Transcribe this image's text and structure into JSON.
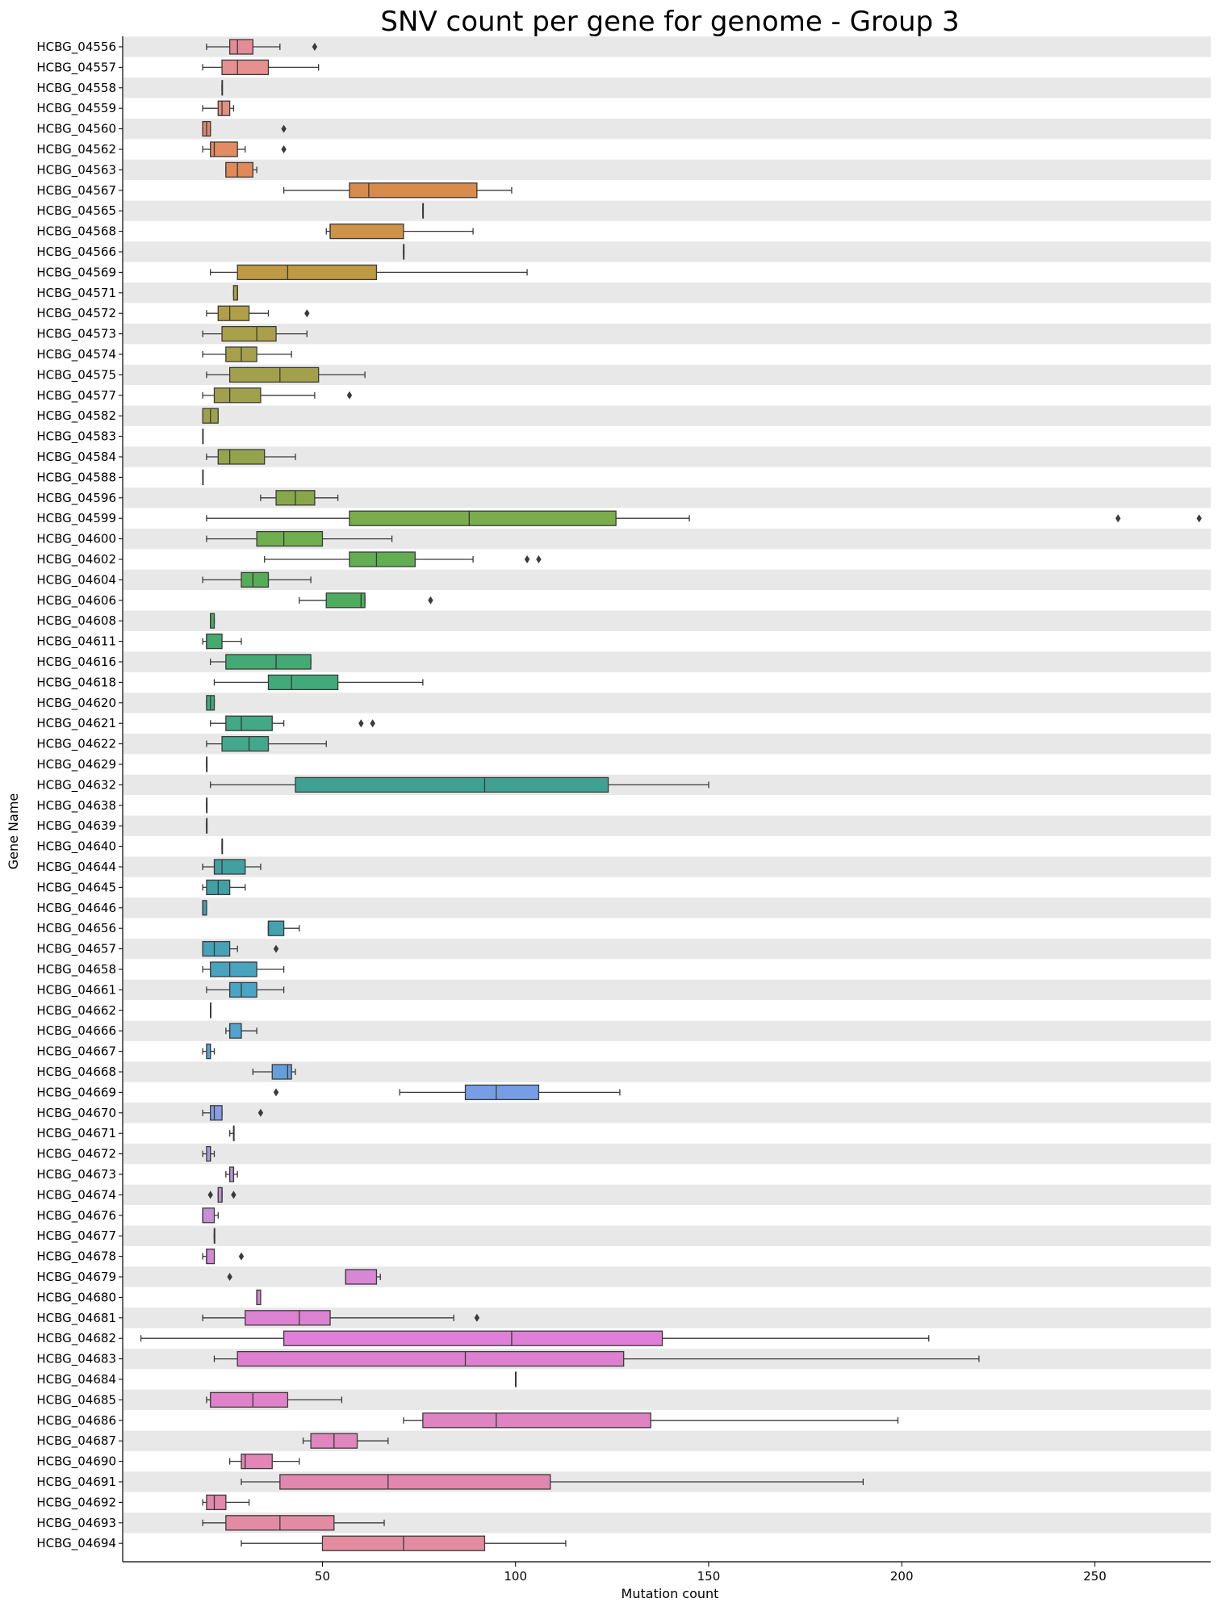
{
  "chart_data": {
    "type": "box",
    "orientation": "horizontal",
    "title": "SNV count per gene for genome - Group 3",
    "xlabel": "Mutation count",
    "ylabel": "Gene Name",
    "xlim": [
      1,
      280
    ],
    "xticks": [
      50,
      100,
      150,
      200,
      250
    ],
    "row_band_color": "#e8e8e8",
    "genes": [
      {
        "name": "HCBG_04556",
        "color": "#e48b98",
        "whisker_low": 20,
        "q1": 26,
        "median": 28,
        "q3": 32,
        "whisker_high": 39,
        "outliers": [
          48
        ]
      },
      {
        "name": "HCBG_04557",
        "color": "#e6908f",
        "whisker_low": 19,
        "q1": 24,
        "median": 28,
        "q3": 36,
        "whisker_high": 49,
        "outliers": []
      },
      {
        "name": "HCBG_04558",
        "color": "#e6908f",
        "whisker_low": 24,
        "q1": 24,
        "median": 24,
        "q3": 24,
        "whisker_high": 24,
        "outliers": []
      },
      {
        "name": "HCBG_04559",
        "color": "#e48f80",
        "whisker_low": 19,
        "q1": 23,
        "median": 24,
        "q3": 26,
        "whisker_high": 27,
        "outliers": []
      },
      {
        "name": "HCBG_04560",
        "color": "#e1876e",
        "whisker_low": 19,
        "q1": 19,
        "median": 20,
        "q3": 21,
        "whisker_high": 21,
        "outliers": [
          40
        ]
      },
      {
        "name": "HCBG_04562",
        "color": "#e38b63",
        "whisker_low": 19,
        "q1": 21,
        "median": 22,
        "q3": 28,
        "whisker_high": 30,
        "outliers": [
          40
        ]
      },
      {
        "name": "HCBG_04563",
        "color": "#df8a58",
        "whisker_low": 25,
        "q1": 25,
        "median": 28,
        "q3": 32,
        "whisker_high": 33,
        "outliers": []
      },
      {
        "name": "HCBG_04567",
        "color": "#d98b4c",
        "whisker_low": 40,
        "q1": 57,
        "median": 62,
        "q3": 90,
        "whisker_high": 99,
        "outliers": []
      },
      {
        "name": "HCBG_04565",
        "color": "#d48d4c",
        "whisker_low": 76,
        "q1": 76,
        "median": 76,
        "q3": 76,
        "whisker_high": 76,
        "outliers": []
      },
      {
        "name": "HCBG_04568",
        "color": "#cf924a",
        "whisker_low": 51,
        "q1": 52,
        "median": 52,
        "q3": 71,
        "whisker_high": 89,
        "outliers": []
      },
      {
        "name": "HCBG_04566",
        "color": "#c79645",
        "whisker_low": 71,
        "q1": 71,
        "median": 71,
        "q3": 71,
        "whisker_high": 71,
        "outliers": []
      },
      {
        "name": "HCBG_04569",
        "color": "#be9a42",
        "whisker_low": 21,
        "q1": 28,
        "median": 41,
        "q3": 64,
        "whisker_high": 103,
        "outliers": []
      },
      {
        "name": "HCBG_04571",
        "color": "#b59e43",
        "whisker_low": 27,
        "q1": 27,
        "median": 28,
        "q3": 28,
        "whisker_high": 28,
        "outliers": []
      },
      {
        "name": "HCBG_04572",
        "color": "#b09f47",
        "whisker_low": 20,
        "q1": 23,
        "median": 26,
        "q3": 31,
        "whisker_high": 36,
        "outliers": [
          46
        ]
      },
      {
        "name": "HCBG_04573",
        "color": "#aba04a",
        "whisker_low": 19,
        "q1": 24,
        "median": 33,
        "q3": 38,
        "whisker_high": 46,
        "outliers": []
      },
      {
        "name": "HCBG_04574",
        "color": "#a6a04b",
        "whisker_low": 19,
        "q1": 25,
        "median": 29,
        "q3": 33,
        "whisker_high": 42,
        "outliers": []
      },
      {
        "name": "HCBG_04575",
        "color": "#a3a04c",
        "whisker_low": 20,
        "q1": 26,
        "median": 39,
        "q3": 49,
        "whisker_high": 61,
        "outliers": []
      },
      {
        "name": "HCBG_04577",
        "color": "#a0a14c",
        "whisker_low": 19,
        "q1": 22,
        "median": 26,
        "q3": 34,
        "whisker_high": 48,
        "outliers": [
          57
        ]
      },
      {
        "name": "HCBG_04582",
        "color": "#9ca24c",
        "whisker_low": 19,
        "q1": 19,
        "median": 21,
        "q3": 23,
        "whisker_high": 23,
        "outliers": []
      },
      {
        "name": "HCBG_04583",
        "color": "#98a34c",
        "whisker_low": 19,
        "q1": 19,
        "median": 19,
        "q3": 19,
        "whisker_high": 19,
        "outliers": []
      },
      {
        "name": "HCBG_04584",
        "color": "#94a44c",
        "whisker_low": 20,
        "q1": 23,
        "median": 26,
        "q3": 35,
        "whisker_high": 43,
        "outliers": []
      },
      {
        "name": "HCBG_04588",
        "color": "#8fa64c",
        "whisker_low": 19,
        "q1": 19,
        "median": 19,
        "q3": 19,
        "whisker_high": 19,
        "outliers": []
      },
      {
        "name": "HCBG_04596",
        "color": "#88a74a",
        "whisker_low": 34,
        "q1": 38,
        "median": 43,
        "q3": 48,
        "whisker_high": 54,
        "outliers": []
      },
      {
        "name": "HCBG_04599",
        "color": "#7bad4c",
        "whisker_low": 20,
        "q1": 57,
        "median": 88,
        "q3": 126,
        "whisker_high": 145,
        "outliers": [
          256,
          277
        ]
      },
      {
        "name": "HCBG_04600",
        "color": "#6faf4f",
        "whisker_low": 20,
        "q1": 33,
        "median": 40,
        "q3": 50,
        "whisker_high": 68,
        "outliers": []
      },
      {
        "name": "HCBG_04602",
        "color": "#62ae53",
        "whisker_low": 35,
        "q1": 57,
        "median": 64,
        "q3": 74,
        "whisker_high": 89,
        "outliers": [
          103,
          106
        ]
      },
      {
        "name": "HCBG_04604",
        "color": "#56ad58",
        "whisker_low": 19,
        "q1": 29,
        "median": 32,
        "q3": 36,
        "whisker_high": 47,
        "outliers": []
      },
      {
        "name": "HCBG_04606",
        "color": "#4eac5e",
        "whisker_low": 44,
        "q1": 51,
        "median": 60,
        "q3": 61,
        "whisker_high": 61,
        "outliers": [
          78
        ]
      },
      {
        "name": "HCBG_04608",
        "color": "#49ab66",
        "whisker_low": 21,
        "q1": 21,
        "median": 21,
        "q3": 22,
        "whisker_high": 22,
        "outliers": []
      },
      {
        "name": "HCBG_04611",
        "color": "#45aa6d",
        "whisker_low": 19,
        "q1": 20,
        "median": 20,
        "q3": 24,
        "whisker_high": 29,
        "outliers": []
      },
      {
        "name": "HCBG_04616",
        "color": "#43aa74",
        "whisker_low": 21,
        "q1": 25,
        "median": 38,
        "q3": 47,
        "whisker_high": 47,
        "outliers": []
      },
      {
        "name": "HCBG_04618",
        "color": "#42a97b",
        "whisker_low": 22,
        "q1": 36,
        "median": 42,
        "q3": 54,
        "whisker_high": 76,
        "outliers": []
      },
      {
        "name": "HCBG_04620",
        "color": "#42a880",
        "whisker_low": 20,
        "q1": 20,
        "median": 21,
        "q3": 22,
        "whisker_high": 22,
        "outliers": []
      },
      {
        "name": "HCBG_04621",
        "color": "#42a886",
        "whisker_low": 21,
        "q1": 25,
        "median": 29,
        "q3": 37,
        "whisker_high": 40,
        "outliers": [
          60,
          63
        ]
      },
      {
        "name": "HCBG_04622",
        "color": "#42a78b",
        "whisker_low": 20,
        "q1": 24,
        "median": 31,
        "q3": 36,
        "whisker_high": 51,
        "outliers": []
      },
      {
        "name": "HCBG_04629",
        "color": "#42a58f",
        "whisker_low": 20,
        "q1": 20,
        "median": 20,
        "q3": 20,
        "whisker_high": 20,
        "outliers": []
      },
      {
        "name": "HCBG_04632",
        "color": "#40a192",
        "whisker_low": 21,
        "q1": 43,
        "median": 92,
        "q3": 124,
        "whisker_high": 150,
        "outliers": []
      },
      {
        "name": "HCBG_04638",
        "color": "#40a095",
        "whisker_low": 20,
        "q1": 20,
        "median": 20,
        "q3": 20,
        "whisker_high": 20,
        "outliers": []
      },
      {
        "name": "HCBG_04639",
        "color": "#40a098",
        "whisker_low": 20,
        "q1": 20,
        "median": 20,
        "q3": 20,
        "whisker_high": 20,
        "outliers": []
      },
      {
        "name": "HCBG_04640",
        "color": "#40a09b",
        "whisker_low": 24,
        "q1": 24,
        "median": 24,
        "q3": 24,
        "whisker_high": 24,
        "outliers": []
      },
      {
        "name": "HCBG_04644",
        "color": "#41a0a0",
        "whisker_low": 19,
        "q1": 22,
        "median": 24,
        "q3": 30,
        "whisker_high": 34,
        "outliers": []
      },
      {
        "name": "HCBG_04645",
        "color": "#42a0a5",
        "whisker_low": 19,
        "q1": 20,
        "median": 23,
        "q3": 26,
        "whisker_high": 30,
        "outliers": []
      },
      {
        "name": "HCBG_04646",
        "color": "#43a0aa",
        "whisker_low": 19,
        "q1": 19,
        "median": 19,
        "q3": 20,
        "whisker_high": 20,
        "outliers": []
      },
      {
        "name": "HCBG_04656",
        "color": "#44a1b0",
        "whisker_low": 36,
        "q1": 36,
        "median": 36,
        "q3": 40,
        "whisker_high": 44,
        "outliers": []
      },
      {
        "name": "HCBG_04657",
        "color": "#46a2b6",
        "whisker_low": 19,
        "q1": 19,
        "median": 22,
        "q3": 26,
        "whisker_high": 28,
        "outliers": [
          38
        ]
      },
      {
        "name": "HCBG_04658",
        "color": "#48a3bc",
        "whisker_low": 19,
        "q1": 21,
        "median": 26,
        "q3": 33,
        "whisker_high": 40,
        "outliers": []
      },
      {
        "name": "HCBG_04661",
        "color": "#4aa4c3",
        "whisker_low": 20,
        "q1": 26,
        "median": 29,
        "q3": 33,
        "whisker_high": 40,
        "outliers": []
      },
      {
        "name": "HCBG_04662",
        "color": "#4ca4c9",
        "whisker_low": 21,
        "q1": 21,
        "median": 21,
        "q3": 21,
        "whisker_high": 21,
        "outliers": []
      },
      {
        "name": "HCBG_04666",
        "color": "#51a3d0",
        "whisker_low": 25,
        "q1": 26,
        "median": 26,
        "q3": 29,
        "whisker_high": 33,
        "outliers": []
      },
      {
        "name": "HCBG_04667",
        "color": "#5aa2d6",
        "whisker_low": 19,
        "q1": 20,
        "median": 21,
        "q3": 21,
        "whisker_high": 22,
        "outliers": []
      },
      {
        "name": "HCBG_04668",
        "color": "#649fdc",
        "whisker_low": 32,
        "q1": 37,
        "median": 41,
        "q3": 42,
        "whisker_high": 43,
        "outliers": []
      },
      {
        "name": "HCBG_04669",
        "color": "#779ee5",
        "whisker_low": 70,
        "q1": 87,
        "median": 95,
        "q3": 106,
        "whisker_high": 127,
        "outliers": [
          38
        ]
      },
      {
        "name": "HCBG_04670",
        "color": "#899ce4",
        "whisker_low": 19,
        "q1": 21,
        "median": 22,
        "q3": 24,
        "whisker_high": 24,
        "outliers": [
          34
        ]
      },
      {
        "name": "HCBG_04671",
        "color": "#999be0",
        "whisker_low": 26,
        "q1": 27,
        "median": 27,
        "q3": 27,
        "whisker_high": 27,
        "outliers": []
      },
      {
        "name": "HCBG_04672",
        "color": "#a799dd",
        "whisker_low": 19,
        "q1": 20,
        "median": 21,
        "q3": 21,
        "whisker_high": 22,
        "outliers": []
      },
      {
        "name": "HCBG_04673",
        "color": "#b496db",
        "whisker_low": 25,
        "q1": 26,
        "median": 27,
        "q3": 27,
        "whisker_high": 28,
        "outliers": []
      },
      {
        "name": "HCBG_04674",
        "color": "#bd92d9",
        "whisker_low": 23,
        "q1": 23,
        "median": 24,
        "q3": 24,
        "whisker_high": 24,
        "outliers": [
          21,
          27
        ]
      },
      {
        "name": "HCBG_04676",
        "color": "#c68fd8",
        "whisker_low": 19,
        "q1": 19,
        "median": 19,
        "q3": 22,
        "whisker_high": 23,
        "outliers": []
      },
      {
        "name": "HCBG_04677",
        "color": "#cc8cd7",
        "whisker_low": 22,
        "q1": 22,
        "median": 22,
        "q3": 22,
        "whisker_high": 22,
        "outliers": []
      },
      {
        "name": "HCBG_04678",
        "color": "#d38ad6",
        "whisker_low": 19,
        "q1": 20,
        "median": 20,
        "q3": 22,
        "whisker_high": 22,
        "outliers": [
          29
        ]
      },
      {
        "name": "HCBG_04679",
        "color": "#d887d5",
        "whisker_low": 56,
        "q1": 56,
        "median": 56,
        "q3": 64,
        "whisker_high": 65,
        "outliers": [
          26
        ]
      },
      {
        "name": "HCBG_04680",
        "color": "#dc84d4",
        "whisker_low": 33,
        "q1": 33,
        "median": 33,
        "q3": 34,
        "whisker_high": 34,
        "outliers": []
      },
      {
        "name": "HCBG_04681",
        "color": "#dd82d2",
        "whisker_low": 19,
        "q1": 30,
        "median": 44,
        "q3": 52,
        "whisker_high": 84,
        "outliers": [
          90
        ]
      },
      {
        "name": "HCBG_04682",
        "color": "#e07fd7",
        "whisker_low": 3,
        "q1": 40,
        "median": 99,
        "q3": 138,
        "whisker_high": 207,
        "outliers": []
      },
      {
        "name": "HCBG_04683",
        "color": "#de80cf",
        "whisker_low": 22,
        "q1": 28,
        "median": 87,
        "q3": 128,
        "whisker_high": 220,
        "outliers": []
      },
      {
        "name": "HCBG_04684",
        "color": "#df81cc",
        "whisker_low": 100,
        "q1": 100,
        "median": 100,
        "q3": 100,
        "whisker_high": 100,
        "outliers": []
      },
      {
        "name": "HCBG_04685",
        "color": "#e082c9",
        "whisker_low": 20,
        "q1": 21,
        "median": 32,
        "q3": 41,
        "whisker_high": 55,
        "outliers": []
      },
      {
        "name": "HCBG_04686",
        "color": "#e083c2",
        "whisker_low": 71,
        "q1": 76,
        "median": 95,
        "q3": 135,
        "whisker_high": 199,
        "outliers": []
      },
      {
        "name": "HCBG_04687",
        "color": "#e085bd",
        "whisker_low": 45,
        "q1": 47,
        "median": 53,
        "q3": 59,
        "whisker_high": 67,
        "outliers": []
      },
      {
        "name": "HCBG_04690",
        "color": "#e186b6",
        "whisker_low": 26,
        "q1": 29,
        "median": 30,
        "q3": 37,
        "whisker_high": 44,
        "outliers": []
      },
      {
        "name": "HCBG_04691",
        "color": "#e287b0",
        "whisker_low": 29,
        "q1": 39,
        "median": 67,
        "q3": 109,
        "whisker_high": 190,
        "outliers": []
      },
      {
        "name": "HCBG_04692",
        "color": "#e389aa",
        "whisker_low": 19,
        "q1": 20,
        "median": 22,
        "q3": 25,
        "whisker_high": 31,
        "outliers": []
      },
      {
        "name": "HCBG_04693",
        "color": "#e48ba4",
        "whisker_low": 19,
        "q1": 25,
        "median": 39,
        "q3": 53,
        "whisker_high": 66,
        "outliers": []
      },
      {
        "name": "HCBG_04694",
        "color": "#e48c9f",
        "whisker_low": 29,
        "q1": 50,
        "median": 71,
        "q3": 92,
        "whisker_high": 113,
        "outliers": []
      }
    ]
  }
}
